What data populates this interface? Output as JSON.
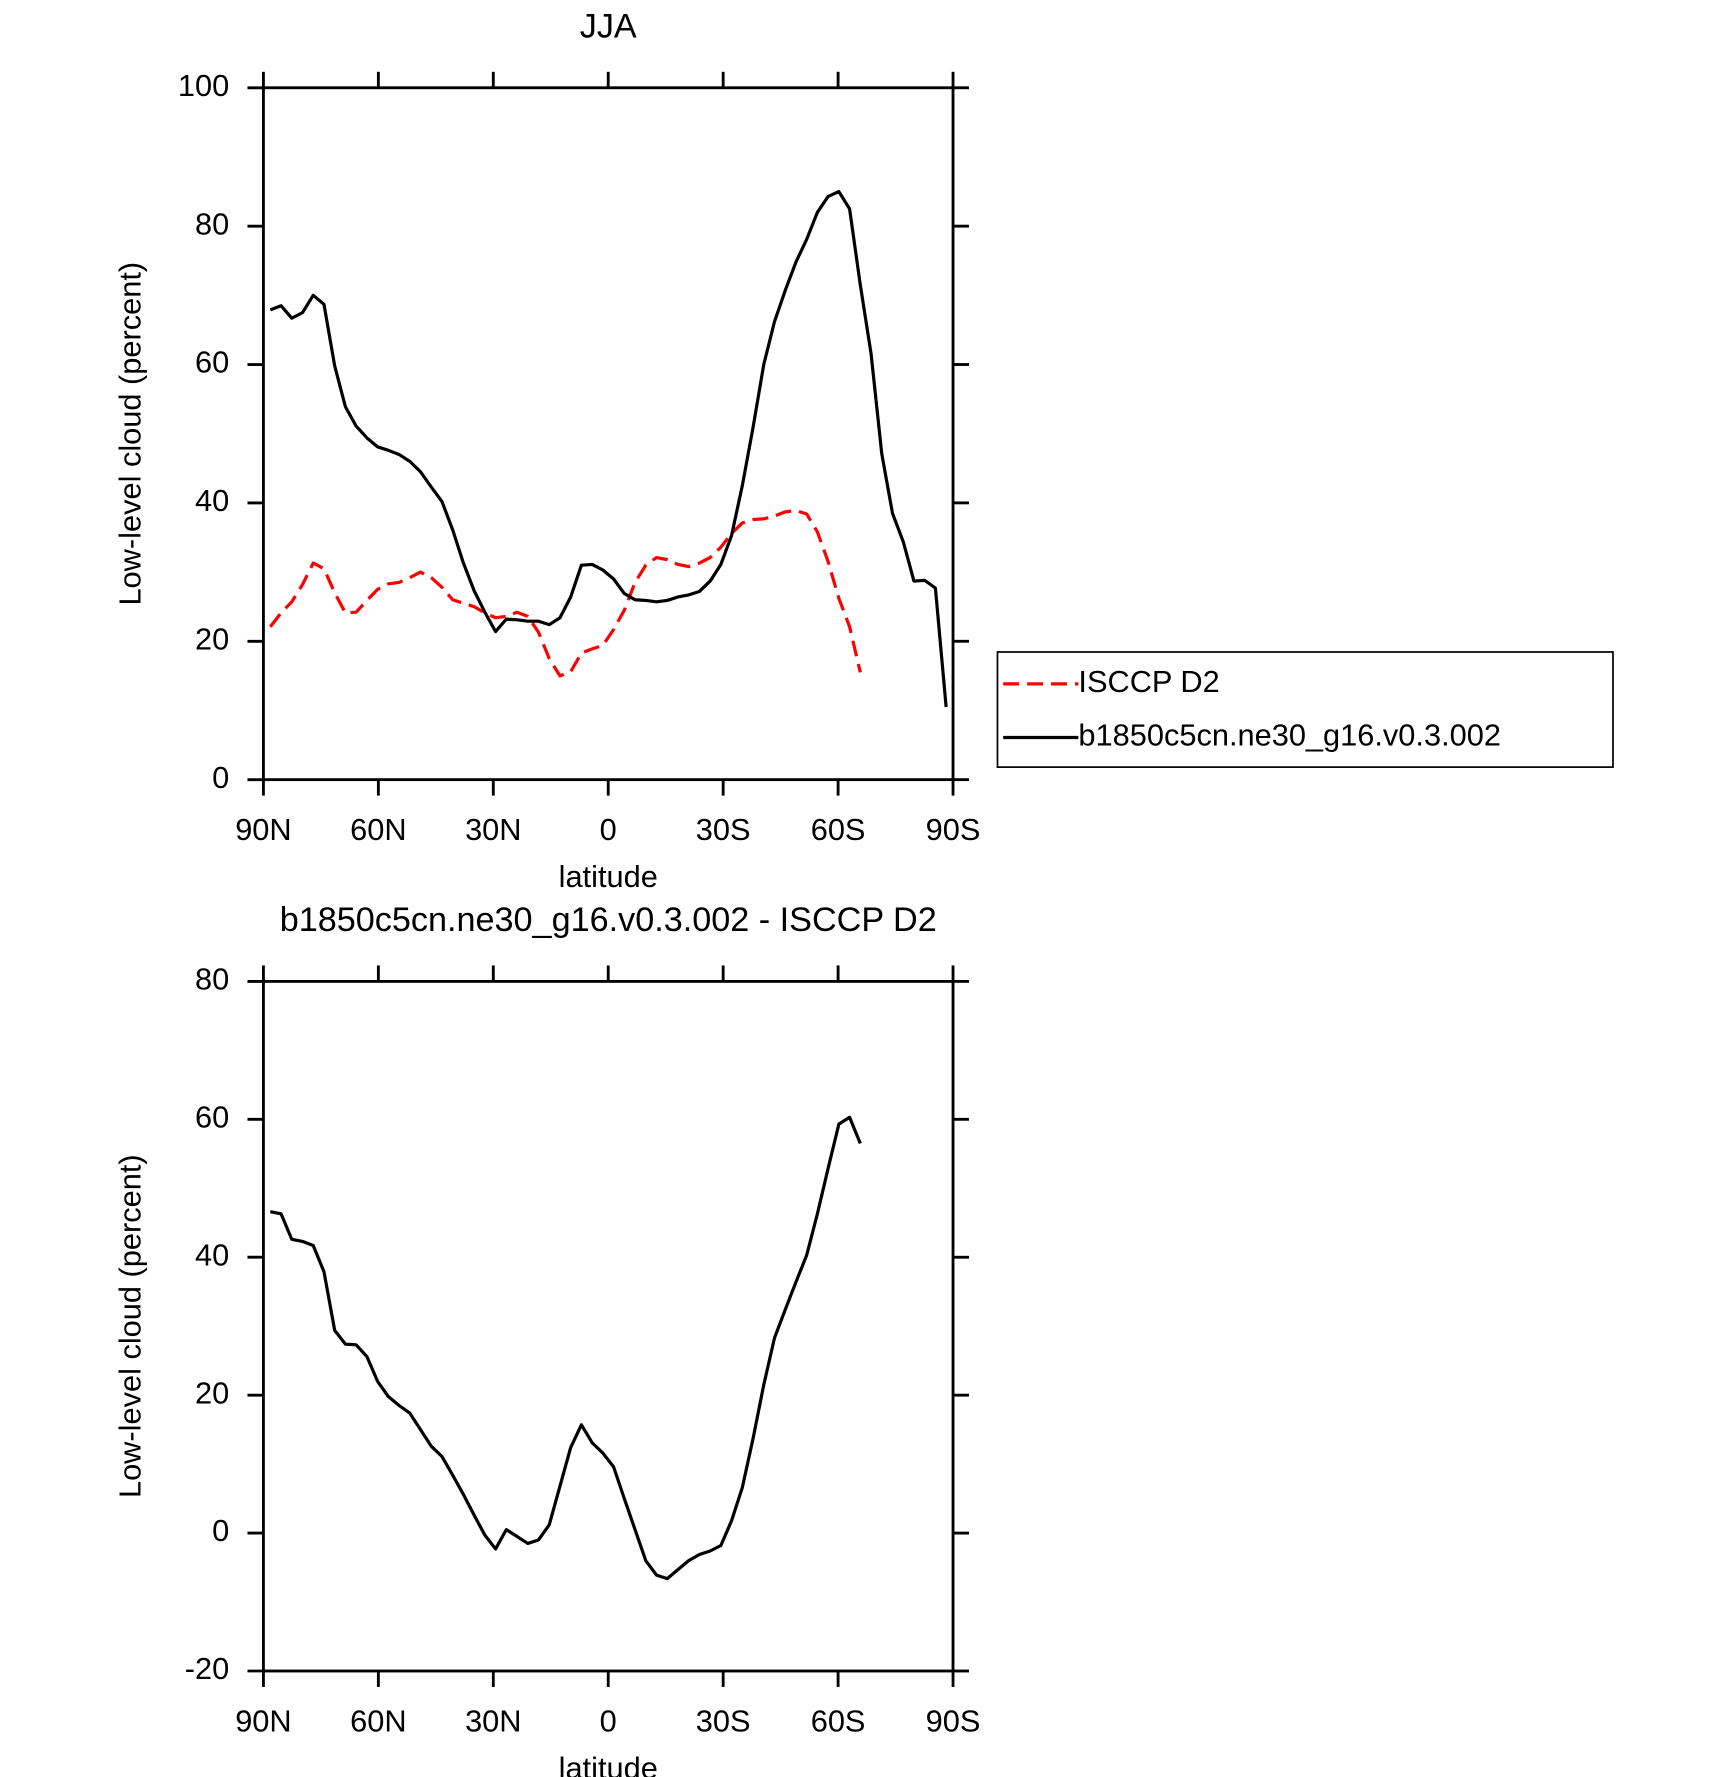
{
  "chart_data": [
    {
      "type": "line",
      "title": "JJA",
      "xlabel": "latitude",
      "ylabel": "Low-level cloud (percent)",
      "xlim": [
        90,
        -90
      ],
      "ylim": [
        0,
        100
      ],
      "xticks": [
        {
          "value": 90,
          "label": "90N"
        },
        {
          "value": 60,
          "label": "60N"
        },
        {
          "value": 30,
          "label": "30N"
        },
        0,
        {
          "value": -30,
          "label": "30S"
        },
        {
          "value": -60,
          "label": "60S"
        },
        {
          "value": -90,
          "label": "90S"
        }
      ],
      "yticks": [
        0,
        20,
        40,
        60,
        80,
        100
      ],
      "legend": "right",
      "series": [
        {
          "name": "ISCCP D2",
          "color": "#ff0000",
          "style": "dashed",
          "x": [
            88.2,
            85.4,
            82.6,
            79.8,
            77.0,
            74.2,
            71.4,
            68.6,
            65.8,
            63.0,
            60.2,
            57.4,
            54.6,
            51.8,
            49.0,
            46.2,
            43.4,
            40.6,
            37.8,
            35.0,
            32.2,
            29.4,
            26.6,
            23.8,
            21.0,
            18.2,
            15.4,
            12.6,
            9.8,
            7.0,
            4.2,
            1.4,
            -1.4,
            -4.2,
            -7.0,
            -9.8,
            -12.6,
            -15.4,
            -18.2,
            -21.0,
            -23.8,
            -26.6,
            -29.4,
            -32.2,
            -35.0,
            -37.8,
            -40.6,
            -43.4,
            -46.2,
            -49.0,
            -51.8,
            -54.6,
            -57.4,
            -60.2,
            -63.0,
            -65.8
          ],
          "values": [
            22.1,
            24.1,
            25.7,
            28.2,
            31.3,
            30.5,
            27.0,
            24.1,
            24.2,
            25.9,
            27.5,
            28.3,
            28.5,
            29.2,
            30.0,
            29.2,
            27.8,
            26.0,
            25.5,
            25.0,
            24.1,
            23.4,
            23.6,
            24.2,
            23.6,
            21.3,
            17.5,
            15.0,
            15.6,
            18.3,
            18.9,
            19.4,
            21.7,
            24.5,
            28.5,
            31.0,
            32.1,
            31.8,
            31.1,
            30.8,
            31.3,
            32.1,
            33.6,
            35.6,
            37.1,
            37.6,
            37.7,
            38.1,
            38.7,
            38.9,
            38.4,
            35.8,
            31.5,
            26.2,
            22.1,
            15.5
          ]
        },
        {
          "name": "b1850c5cn.ne30_g16.v0.3.002",
          "color": "#000000",
          "style": "solid",
          "x": [
            88.2,
            85.4,
            82.6,
            79.8,
            77.0,
            74.2,
            71.4,
            68.6,
            65.8,
            63.0,
            60.2,
            57.4,
            54.6,
            51.8,
            49.0,
            46.2,
            43.4,
            40.6,
            37.8,
            35.0,
            32.2,
            29.4,
            26.6,
            23.8,
            21.0,
            18.2,
            15.4,
            12.6,
            9.8,
            7.0,
            4.2,
            1.4,
            -1.4,
            -4.2,
            -7.0,
            -9.8,
            -12.6,
            -15.4,
            -18.2,
            -21.0,
            -23.8,
            -26.6,
            -29.4,
            -32.2,
            -35.0,
            -37.8,
            -40.6,
            -43.4,
            -46.2,
            -49.0,
            -51.8,
            -54.6,
            -57.4,
            -60.2,
            -63.0,
            -65.8,
            -68.6,
            -71.4,
            -74.2,
            -77.0,
            -79.8,
            -82.6,
            -85.4,
            -88.2
          ],
          "values": [
            67.9,
            68.5,
            66.7,
            67.5,
            70.0,
            68.7,
            59.8,
            53.9,
            51.1,
            49.4,
            48.1,
            47.6,
            47.0,
            46.0,
            44.5,
            42.3,
            40.2,
            36.1,
            31.3,
            27.3,
            24.2,
            21.4,
            23.2,
            23.1,
            22.9,
            22.9,
            22.4,
            23.4,
            26.4,
            31.0,
            31.1,
            30.3,
            29.0,
            26.9,
            26.0,
            25.9,
            25.7,
            25.9,
            26.4,
            26.7,
            27.2,
            28.7,
            31.1,
            35.3,
            42.5,
            50.9,
            60.0,
            66.2,
            70.7,
            74.8,
            78.1,
            82.0,
            84.3,
            85.0,
            82.5,
            71.5,
            61.6,
            47.1,
            38.5,
            34.4,
            28.7,
            28.8,
            27.7,
            10.5
          ]
        }
      ]
    },
    {
      "type": "line",
      "title": "b1850c5cn.ne30_g16.v0.3.002 - ISCCP D2",
      "xlabel": "latitude",
      "ylabel": "Low-level cloud (percent)",
      "xlim": [
        90,
        -90
      ],
      "ylim": [
        -20,
        80
      ],
      "xticks": [
        {
          "value": 90,
          "label": "90N"
        },
        {
          "value": 60,
          "label": "60N"
        },
        {
          "value": 30,
          "label": "30N"
        },
        0,
        {
          "value": -30,
          "label": "30S"
        },
        {
          "value": -60,
          "label": "60S"
        },
        {
          "value": -90,
          "label": "90S"
        }
      ],
      "yticks": [
        -20,
        0,
        20,
        40,
        60,
        80
      ],
      "series": [
        {
          "color": "#000000",
          "style": "solid",
          "x": [
            88.2,
            85.4,
            82.6,
            79.8,
            77.0,
            74.2,
            71.4,
            68.6,
            65.8,
            63.0,
            60.2,
            57.4,
            54.6,
            51.8,
            49.0,
            46.2,
            43.4,
            40.6,
            37.8,
            35.0,
            32.2,
            29.4,
            26.6,
            23.8,
            21.0,
            18.2,
            15.4,
            12.6,
            9.8,
            7.0,
            4.2,
            1.4,
            -1.4,
            -4.2,
            -7.0,
            -9.8,
            -12.6,
            -15.4,
            -18.2,
            -21.0,
            -23.8,
            -26.6,
            -29.4,
            -32.2,
            -35.0,
            -37.8,
            -40.6,
            -43.4,
            -46.2,
            -49.0,
            -51.8,
            -54.6,
            -57.4,
            -60.2,
            -63.0,
            -65.8
          ],
          "values": [
            46.6,
            46.3,
            42.6,
            42.3,
            41.7,
            37.9,
            29.4,
            27.4,
            27.3,
            25.6,
            22.0,
            19.8,
            18.5,
            17.4,
            15.0,
            12.6,
            11.1,
            8.4,
            5.6,
            2.6,
            -0.3,
            -2.3,
            0.5,
            -0.5,
            -1.5,
            -1.0,
            1.2,
            6.8,
            12.4,
            15.7,
            13.1,
            11.6,
            9.6,
            5.0,
            0.5,
            -4.0,
            -6.1,
            -6.6,
            -5.3,
            -4.0,
            -3.1,
            -2.6,
            -1.8,
            1.8,
            6.6,
            13.7,
            21.5,
            28.3,
            32.4,
            36.4,
            40.3,
            46.3,
            52.9,
            59.3,
            60.3,
            56.5
          ]
        }
      ]
    }
  ]
}
